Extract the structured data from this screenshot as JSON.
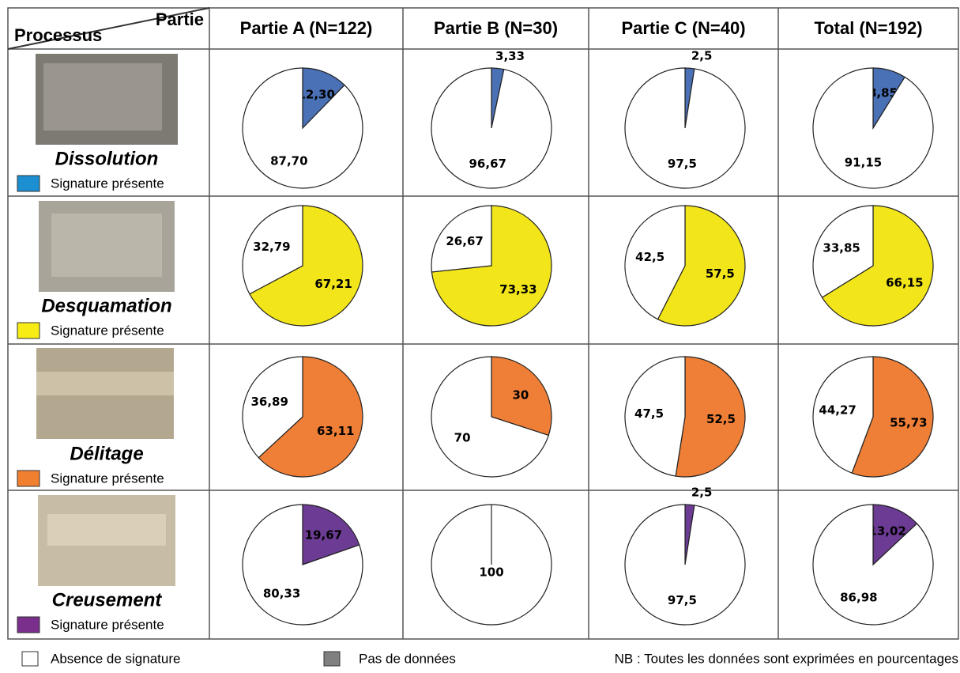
{
  "table": {
    "corner_top": "Partie",
    "corner_bottom": "Processus",
    "columns": [
      "Partie A (N=122)",
      "Partie B (N=30)",
      "Partie C (N=40)",
      "Total (N=192)"
    ],
    "rows": [
      {
        "name": "Dissolution",
        "legend": "Signature présente",
        "color": "#1b8fd2"
      },
      {
        "name": "Desquamation",
        "legend": "Signature présente",
        "color": "#f7ec13"
      },
      {
        "name": "Délitage",
        "legend": "Signature présente",
        "color": "#f07f2f"
      },
      {
        "name": "Creusement",
        "legend": "Signature présente",
        "color": "#7a2f8c"
      }
    ]
  },
  "chart_data": [
    {
      "type": "pie",
      "values": [
        12.3,
        87.7
      ],
      "value_labels": [
        "12,30",
        "87,70"
      ],
      "colors": [
        "#4a70b5",
        "#ffffff"
      ]
    },
    {
      "type": "pie",
      "values": [
        3.33,
        96.67
      ],
      "value_labels": [
        "3,33",
        "96,67"
      ],
      "colors": [
        "#4a70b5",
        "#ffffff"
      ]
    },
    {
      "type": "pie",
      "values": [
        2.5,
        97.5
      ],
      "value_labels": [
        "2,5",
        "97,5"
      ],
      "colors": [
        "#4a70b5",
        "#ffffff"
      ]
    },
    {
      "type": "pie",
      "values": [
        8.85,
        91.15
      ],
      "value_labels": [
        "8,85",
        "91,15"
      ],
      "colors": [
        "#4a70b5",
        "#ffffff"
      ]
    },
    {
      "type": "pie",
      "values": [
        67.21,
        32.79
      ],
      "value_labels": [
        "67,21",
        "32,79"
      ],
      "colors": [
        "#f2e51a",
        "#ffffff"
      ]
    },
    {
      "type": "pie",
      "values": [
        73.33,
        26.67
      ],
      "value_labels": [
        "73,33",
        "26,67"
      ],
      "colors": [
        "#f2e51a",
        "#ffffff"
      ]
    },
    {
      "type": "pie",
      "values": [
        57.5,
        42.5
      ],
      "value_labels": [
        "57,5",
        "42,5"
      ],
      "colors": [
        "#f2e51a",
        "#ffffff"
      ]
    },
    {
      "type": "pie",
      "values": [
        66.15,
        33.85
      ],
      "value_labels": [
        "66,15",
        "33,85"
      ],
      "colors": [
        "#f2e51a",
        "#ffffff"
      ]
    },
    {
      "type": "pie",
      "values": [
        63.11,
        36.89
      ],
      "value_labels": [
        "63,11",
        "36,89"
      ],
      "colors": [
        "#ef7f37",
        "#ffffff"
      ]
    },
    {
      "type": "pie",
      "values": [
        30,
        70
      ],
      "colors": [
        "#ef7f37",
        "#ffffff"
      ]
    },
    {
      "type": "pie",
      "values": [
        52.5,
        47.5
      ],
      "value_labels": [
        "52,5",
        "47,5"
      ],
      "colors": [
        "#ef7f37",
        "#ffffff"
      ]
    },
    {
      "type": "pie",
      "values": [
        55.73,
        44.27
      ],
      "value_labels": [
        "55,73",
        "44,27"
      ],
      "colors": [
        "#ef7f37",
        "#ffffff"
      ]
    },
    {
      "type": "pie",
      "values": [
        19.67,
        80.33
      ],
      "value_labels": [
        "19,67",
        "80,33"
      ],
      "colors": [
        "#6c3b93",
        "#ffffff"
      ]
    },
    {
      "type": "pie",
      "values": [
        100
      ],
      "colors": [
        "#ffffff"
      ]
    },
    {
      "type": "pie",
      "values": [
        2.5,
        97.5
      ],
      "value_labels": [
        "2,5",
        "97,5"
      ],
      "colors": [
        "#6c3b93",
        "#ffffff"
      ]
    },
    {
      "type": "pie",
      "values": [
        13.02,
        86.98
      ],
      "value_labels": [
        "13,02",
        "86,98"
      ],
      "colors": [
        "#6c3b93",
        "#ffffff"
      ]
    }
  ],
  "legend": {
    "absence": "Absence de signature",
    "no_data": "Pas de données",
    "note": "NB : Toutes les données sont exprimées en pourcentages"
  }
}
